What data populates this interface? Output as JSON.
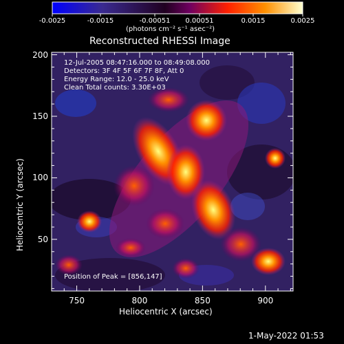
{
  "colorbar": {
    "tick_labels": [
      "-0.0025",
      "-0.0015",
      "-0.00051",
      "0.00051",
      "0.0015",
      "0.0025"
    ],
    "units": "(photons cm⁻² s⁻¹ asec⁻²)"
  },
  "image": {
    "title": "Reconstructed RHESSI Image",
    "info_lines": [
      "12-Jul-2005 08:47:16.000 to 08:49:08.000",
      "Detectors: 3F 4F 5F 6F 7F 8F, Att 0",
      "Energy Range: 12.0 - 25.0 keV",
      "Clean     Total counts: 3.30E+03"
    ],
    "peak_label": "Position of Peak = [856,147]",
    "xlabel": "Heliocentric X (arcsec)",
    "ylabel": "Heliocentric Y (arcsec)",
    "x_ticks": [
      "750",
      "800",
      "850",
      "900"
    ],
    "y_ticks": [
      "50",
      "100",
      "150",
      "200"
    ],
    "x_range": [
      730,
      922
    ],
    "y_range": [
      8,
      202
    ],
    "peak": {
      "x": 856,
      "y": 147
    }
  },
  "footer": {
    "date": "1-May-2022 01:53"
  },
  "colors": {
    "background": "#000000",
    "axes": "#ffffff",
    "colormap": [
      "#0000ff",
      "#5a1fa0",
      "#300a40",
      "#a0208a",
      "#ff3000",
      "#ff9000",
      "#ffff80"
    ]
  }
}
